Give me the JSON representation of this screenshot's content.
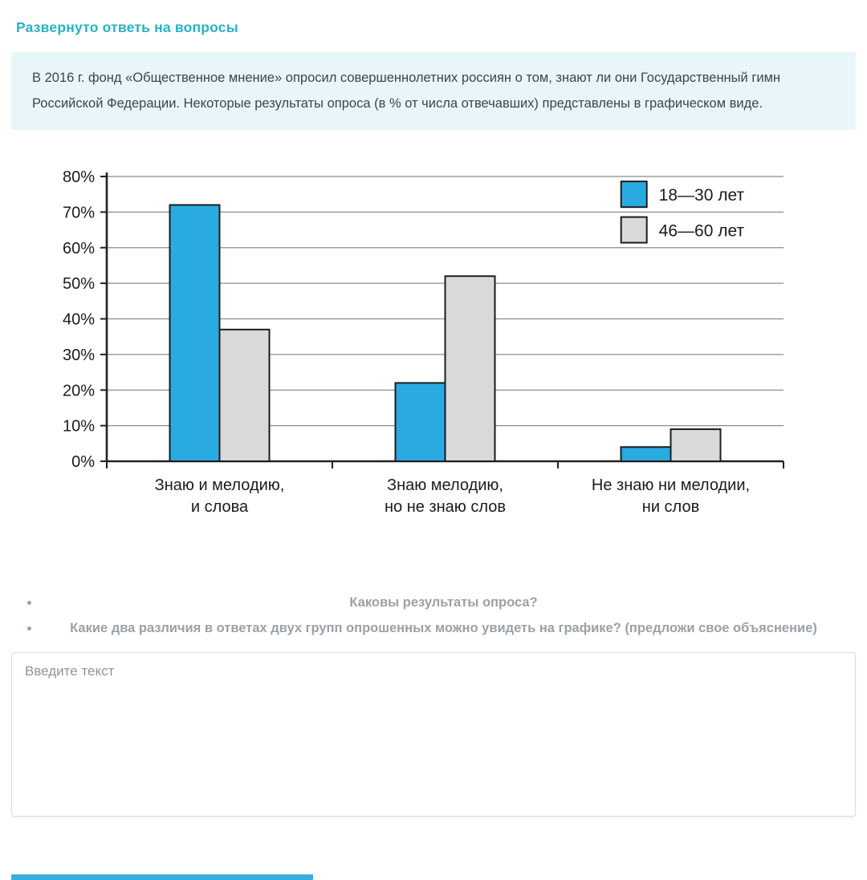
{
  "header": {
    "title": "Развернуто ответь на вопросы"
  },
  "task": {
    "description": "В 2016 г. фонд «Общественное мнение» опросил совершеннолетних россиян о том, знают ли они Государственный гимн Российской Федерации. Некоторые результаты опроса (в % от числа отвечавших) представлены в графическом виде."
  },
  "chart_data": {
    "type": "bar",
    "title": "",
    "xlabel": "",
    "ylabel": "",
    "categories": [
      "Знаю и мелодию,\nи слова",
      "Знаю мелодию,\nно не знаю слов",
      "Не знаю ни мелодии,\nни слов"
    ],
    "series": [
      {
        "name": "18—30 лет",
        "color": "#29abe2",
        "values": [
          72,
          22,
          4
        ]
      },
      {
        "name": "46—60 лет",
        "color": "#d9d9d9",
        "values": [
          37,
          52,
          9
        ]
      }
    ],
    "ylim": [
      0,
      80
    ],
    "ytick_step": 10,
    "yticks": [
      "0%",
      "10%",
      "20%",
      "30%",
      "40%",
      "50%",
      "60%",
      "70%",
      "80%"
    ],
    "grid": true,
    "legend_position": "top-right-inside",
    "units": "% от числа отвечавших"
  },
  "questions": [
    "Каковы результаты опроса?",
    "Какие два различия в ответах двух групп опрошенных можно увидеть на графике? (предложи свое объяснение)"
  ],
  "answer_input": {
    "placeholder": "Введите текст",
    "value": ""
  },
  "colors": {
    "title": "#27b2c4",
    "info_bg": "#e8f6f9",
    "series_18_30": "#29abe2",
    "series_46_60": "#d9d9d9",
    "accent_bar": "#38aede"
  }
}
